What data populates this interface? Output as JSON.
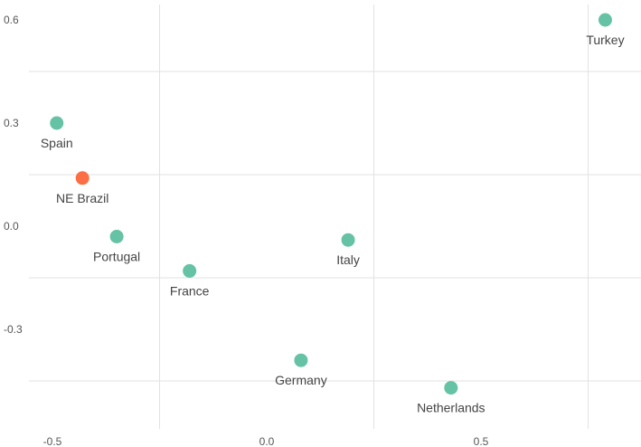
{
  "chart_data": {
    "type": "scatter",
    "title": "",
    "xlabel": "",
    "ylabel": "",
    "xlim": [
      -0.55,
      0.85
    ],
    "ylim": [
      -0.6,
      0.66
    ],
    "x_ticks": [
      -0.5,
      0.0,
      0.5
    ],
    "x_tick_labels": [
      "-0.5",
      "0.0",
      "0.5"
    ],
    "y_ticks": [
      0.6,
      0.3,
      0.0,
      -0.3
    ],
    "y_tick_labels": [
      "0.6",
      "0.3",
      "0.0",
      "-0.3"
    ],
    "grid": true,
    "colors": {
      "default": "#66c2a5",
      "highlight": "#fc6e43"
    },
    "points": [
      {
        "label": "Turkey",
        "x": 0.79,
        "y": 0.6,
        "highlight": false
      },
      {
        "label": "Spain",
        "x": -0.49,
        "y": 0.3,
        "highlight": false
      },
      {
        "label": "NE Brazil",
        "x": -0.43,
        "y": 0.14,
        "highlight": true
      },
      {
        "label": "Portugal",
        "x": -0.35,
        "y": -0.03,
        "highlight": false
      },
      {
        "label": "Italy",
        "x": 0.19,
        "y": -0.04,
        "highlight": false
      },
      {
        "label": "France",
        "x": -0.18,
        "y": -0.13,
        "highlight": false
      },
      {
        "label": "Germany",
        "x": 0.08,
        "y": -0.39,
        "highlight": false
      },
      {
        "label": "Netherlands",
        "x": 0.43,
        "y": -0.47,
        "highlight": false
      }
    ]
  }
}
